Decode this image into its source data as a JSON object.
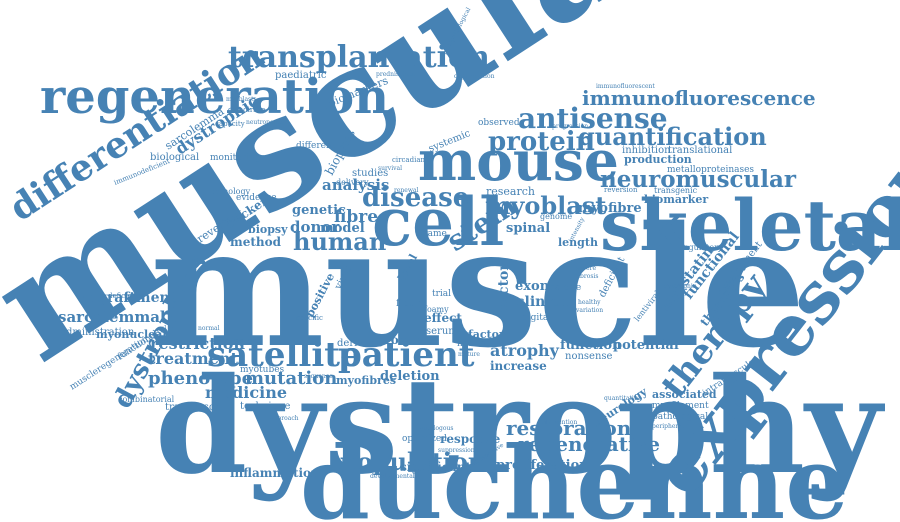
{
  "color": "#4682b4",
  "words": {
    "muscular": "muscular",
    "muscle": "muscle",
    "dystrophy": "dystrophy",
    "duchenne": "duchenne",
    "expression": "expression",
    "skeletal": "skeletal",
    "mouse": "mouse",
    "cell": "cell",
    "regeneration": "regeneration",
    "transplantation": "transplantation",
    "differentiation": "differentiation",
    "satellite": "satellite",
    "patient": "patient",
    "dystrophies": "dystrophies",
    "antisense": "antisense",
    "immunofluorescence": "immunofluorescence",
    "protein": "protein",
    "quantification": "quantification",
    "neuromuscular": "neuromuscular",
    "therapy": "therapy",
    "disease": "disease",
    "human": "human",
    "myoblast": "myoblast",
    "stem": "stem",
    "population": "population",
    "regenerative": "regenerative",
    "restoration": "restoration",
    "phenotype": "phenotype",
    "mutation": "mutation",
    "medicine": "medicine",
    "treatment": "treatment",
    "restriction": "restriction",
    "sarcolemmal": "sarcolemmal",
    "engraftment": "engraftment",
    "myonuclear": "myonuclear",
    "dystrophic": "dystrophic",
    "biological": "biological",
    "sarcolemma": "sarcolemma",
    "biomarkers": "biomarkers",
    "paediatric": "paediatric",
    "analysis": "analysis",
    "genetic": "genetic",
    "model": "model",
    "fibre": "fibre",
    "donor": "donor",
    "biopsy": "biopsy",
    "method": "method",
    "becker": "becker",
    "revertant": "revertant",
    "myofibre": "myofibre",
    "biomarker": "biomarker",
    "production": "production",
    "metalloproteinases": "metalloproteinases",
    "transgenic": "transgenic",
    "inhibition": "inhibition",
    "translational": "translational",
    "research": "research",
    "spinal": "spinal",
    "exon": "exon",
    "calorie": "calorie",
    "clinical": "clinical",
    "length": "length",
    "vector": "vector",
    "level": "level",
    "positive": "positive",
    "myostatin": "myostatin",
    "functional": "functional",
    "development": "development",
    "therapies": "therapies",
    "deficient": "deficient",
    "function": "function",
    "potential": "potential",
    "atrophy": "atrophy",
    "increase": "increase",
    "nonsense": "nonsense",
    "factor": "factor",
    "effect": "effect",
    "serum": "serum",
    "fiber": "fiber",
    "health": "health",
    "growth": "growth",
    "derived": "derived",
    "myofibres": "myofibres",
    "deletion": "deletion",
    "response": "response",
    "significant": "significant",
    "proliferation": "proliferation",
    "inflammation": "inflammation",
    "neurology": "neurology",
    "associated": "associated",
    "myofilament": "myofilament",
    "pathological": "pathological",
    "intramuscular": "intramuscular",
    "technique": "technique",
    "transposon": "transposon",
    "administration": "administration",
    "muscleregeneration": "muscleregeneration",
    "functionality": "functionality",
    "combinatorial": "combinatorial",
    "optimized": "optimized",
    "digital": "digital",
    "myotubes": "myotubes",
    "strategies": "strategies",
    "studies": "studies",
    "monitoring": "monitoring",
    "pathology": "pathology",
    "evidence": "evidence",
    "immunodeficient": "immunodeficient",
    "systemic": "systemic",
    "observed": "observed",
    "different": "different",
    "biopsies": "biopsies",
    "regulatory": "regulatory",
    "lentiviral": "lentiviral",
    "delivery": "delivery",
    "virus": "virus",
    "trial": "trial",
    "frame": "frame",
    "genome": "genome",
    "circadian": "circadian",
    "histopathological": "histopathological",
    "immunofluorescent": "immunofluorescent",
    "degeneration": "degeneration",
    "myoblasts": "myoblasts",
    "golodirsen": "golodirsen",
    "neutropenia": "neutropenia",
    "prednisolone": "prednisolone",
    "capacity": "capacity",
    "renewal": "renewal",
    "survival": "survival",
    "foamy": "foamy",
    "reversion": "reversion",
    "progression": "progression",
    "fibrosis": "fibrosis",
    "severe": "severe",
    "variation": "variation",
    "dystrophin": "dystrophin",
    "quantitative": "quantitative",
    "intervention": "intervention",
    "intensity": "intensity",
    "deficiency": "deficiency",
    "specific": "specific",
    "autologous": "autologous",
    "retrospective": "retrospective",
    "developmental": "developmental",
    "suppression": "suppression",
    "normal": "normal",
    "healthy": "healthy",
    "mature": "mature",
    "peripheral": "peripheral",
    "approach": "approach",
    "sequence": "sequence"
  }
}
